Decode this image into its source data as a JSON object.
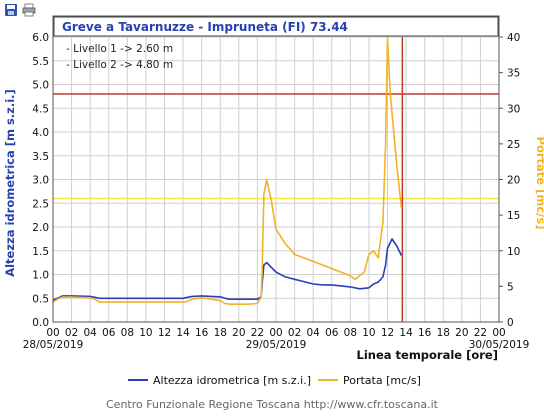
{
  "toolbar": {
    "save_icon": "save-icon",
    "print_icon": "print-icon"
  },
  "chart_data": {
    "type": "line",
    "title": "Greve a Tavarnuzze - Impruneta (FI) 73.44",
    "ylabel": "Altezza idrometrica [m s.z.i.]",
    "y2label": "Portate [mc/s]",
    "xlabel": "Linea temporale [ore]",
    "ylim": [
      0,
      6
    ],
    "y2lim": [
      0,
      40
    ],
    "yticks": [
      "0.0",
      "0.5",
      "1.0",
      "1.5",
      "2.0",
      "2.5",
      "3.0",
      "3.5",
      "4.0",
      "4.5",
      "5.0",
      "5.5",
      "6.0"
    ],
    "y2ticks": [
      "0",
      "5",
      "10",
      "15",
      "20",
      "25",
      "30",
      "35",
      "40"
    ],
    "xlim": [
      0,
      48
    ],
    "xticks": [
      "00",
      "02",
      "04",
      "06",
      "08",
      "10",
      "12",
      "14",
      "16",
      "18",
      "20",
      "22",
      "00",
      "02",
      "04",
      "06",
      "08",
      "10",
      "12",
      "14",
      "16",
      "18",
      "20",
      "22",
      "00"
    ],
    "dates": [
      "28/05/2019",
      "29/05/2019",
      "30/05/2019"
    ],
    "grid": true,
    "annotations": [
      "- Livello 1 -> 2.60 m",
      "- Livello 2 -> 4.80 m"
    ],
    "thresholds": [
      {
        "value": 2.6,
        "color": "#f2ea3c"
      },
      {
        "value": 4.8,
        "color": "#c0392b"
      }
    ],
    "current_time_hour": 37.6,
    "series": [
      {
        "name": "Altezza idrometrica [m s.z.i.]",
        "axis": "left",
        "color": "#2a3fb8",
        "x": [
          0,
          0.5,
          1,
          2,
          4,
          4.5,
          5,
          8,
          10,
          12,
          14,
          14.5,
          15,
          16,
          17,
          18,
          18.5,
          19,
          20,
          21,
          22,
          22.4,
          22.5,
          22.7,
          23,
          23.5,
          24,
          25,
          26,
          27,
          28,
          29,
          30,
          31,
          32,
          33,
          34,
          34.5,
          35,
          35.5,
          35.8,
          36,
          36.5,
          37,
          37.5
        ],
        "values": [
          0.46,
          0.5,
          0.55,
          0.55,
          0.54,
          0.52,
          0.5,
          0.5,
          0.5,
          0.5,
          0.5,
          0.52,
          0.54,
          0.55,
          0.54,
          0.53,
          0.5,
          0.48,
          0.48,
          0.48,
          0.48,
          0.53,
          0.8,
          1.2,
          1.25,
          1.15,
          1.05,
          0.95,
          0.9,
          0.85,
          0.8,
          0.78,
          0.78,
          0.76,
          0.74,
          0.7,
          0.72,
          0.8,
          0.84,
          0.95,
          1.2,
          1.55,
          1.75,
          1.6,
          1.4
        ]
      },
      {
        "name": "Portata [mc/s]",
        "axis": "right",
        "color": "#f0b429",
        "x": [
          0,
          0.5,
          1,
          2,
          4,
          4.5,
          5,
          8,
          10,
          12,
          14,
          14.5,
          15,
          16,
          17,
          18,
          18.5,
          19,
          20,
          21,
          22,
          22.4,
          22.5,
          22.7,
          23,
          23.5,
          24,
          25,
          26,
          27,
          28,
          29,
          30,
          31,
          32,
          32.5,
          33,
          33.5,
          34,
          34.5,
          35,
          35.5,
          35.8,
          36,
          36.3,
          37,
          37.5
        ],
        "values": [
          2.8,
          3.2,
          3.5,
          3.5,
          3.4,
          3.2,
          2.8,
          2.8,
          2.8,
          2.8,
          2.8,
          2.9,
          3.2,
          3.4,
          3.2,
          3.0,
          2.6,
          2.5,
          2.5,
          2.5,
          2.6,
          3.5,
          7.0,
          18.0,
          20.0,
          17.0,
          13.0,
          11.0,
          9.5,
          9.0,
          8.5,
          8.0,
          7.5,
          7.0,
          6.5,
          6.0,
          6.5,
          7.0,
          9.5,
          10.0,
          9.0,
          14.0,
          25.0,
          40.0,
          32.0,
          22.0,
          16.0
        ]
      }
    ]
  },
  "footer": "Centro Funzionale Regione Toscana http://www.cfr.toscana.it"
}
